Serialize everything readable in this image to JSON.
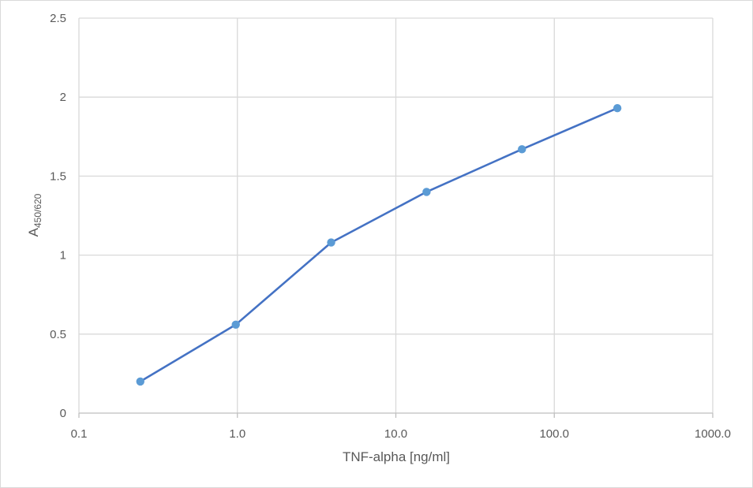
{
  "chart_data": {
    "type": "line",
    "title": "",
    "xlabel": "TNF-alpha [ng/ml]",
    "ylabel_main": "A",
    "ylabel_sub": "450/620",
    "x_scale": "log",
    "xlim": [
      0.1,
      1000
    ],
    "ylim": [
      0,
      2.5
    ],
    "x_ticks": [
      "0.1",
      "1.0",
      "10.0",
      "100.0",
      "1000.0"
    ],
    "y_ticks": [
      "0",
      "0.5",
      "1",
      "1.5",
      "2",
      "2.5"
    ],
    "grid": true,
    "legend": "none",
    "series": [
      {
        "x": [
          0.244,
          0.977,
          3.906,
          15.625,
          62.5,
          250
        ],
        "y": [
          0.2,
          0.56,
          1.08,
          1.4,
          1.67,
          1.93
        ],
        "color": "#4472c4",
        "marker_color": "#5b9bd5"
      }
    ]
  }
}
